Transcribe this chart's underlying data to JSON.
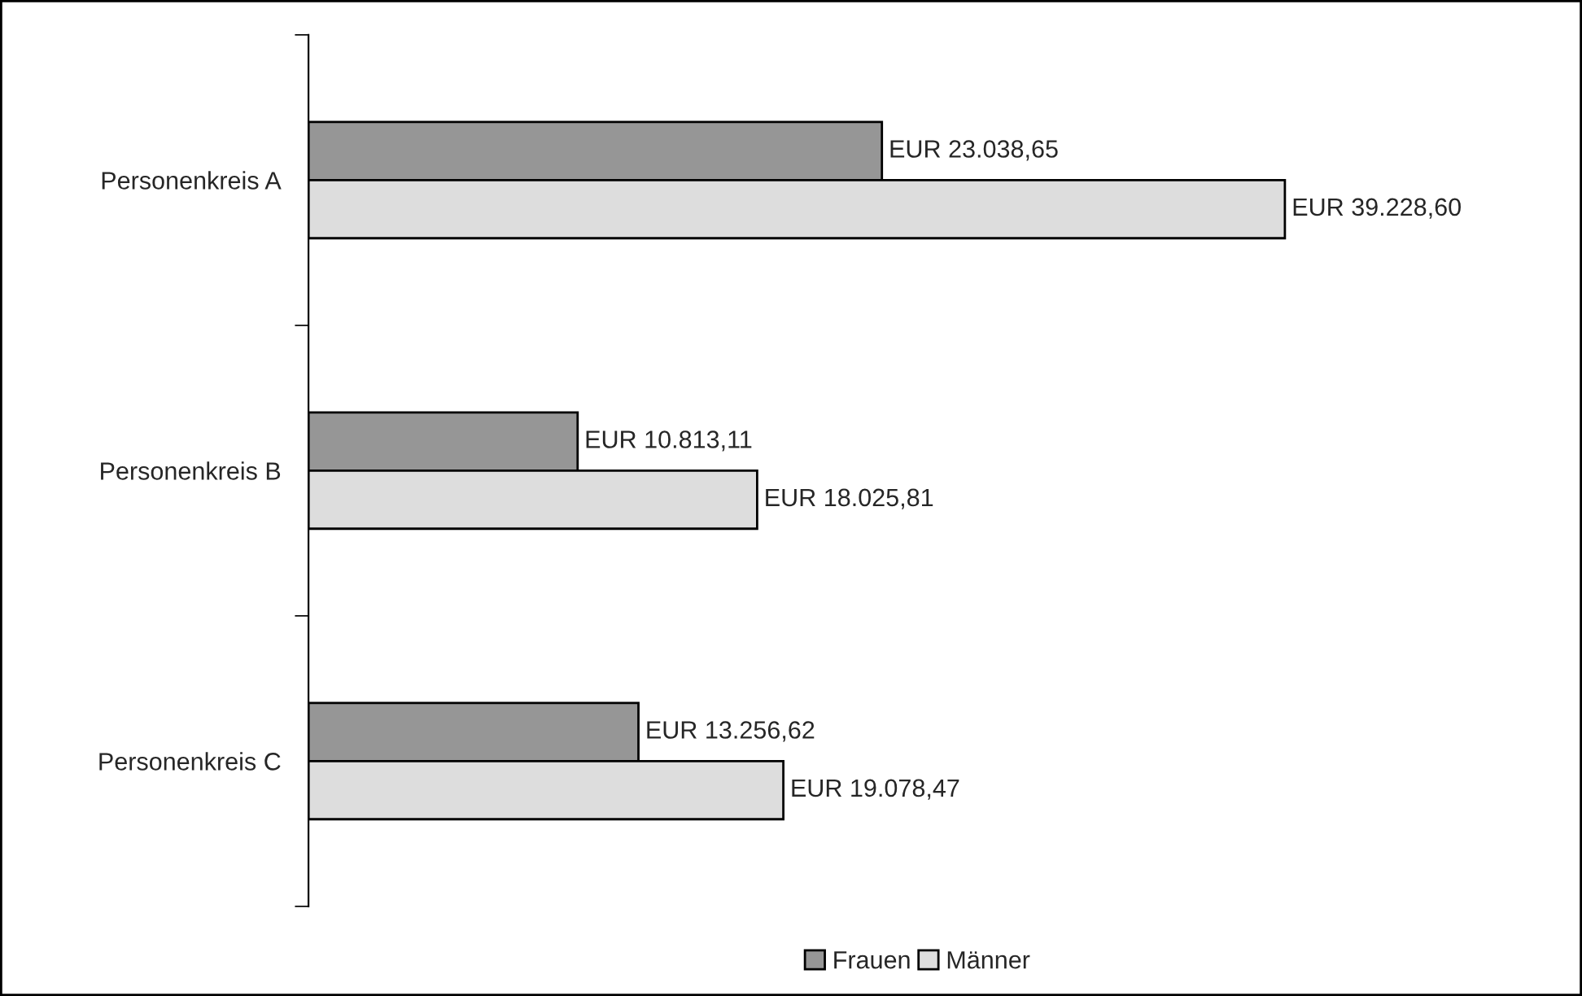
{
  "chart_data": {
    "type": "bar",
    "orientation": "horizontal",
    "categories": [
      "Personenkreis A",
      "Personenkreis B",
      "Personenkreis C"
    ],
    "series": [
      {
        "name": "Frauen",
        "color": "#969696",
        "values": [
          23038.65,
          10813.11,
          13256.62
        ],
        "value_labels": [
          "EUR 23.038,65",
          "EUR 10.813,11",
          "EUR 13.256,62"
        ]
      },
      {
        "name": "Männer",
        "color": "#dddddd",
        "values": [
          39228.6,
          18025.81,
          19078.47
        ],
        "value_labels": [
          "EUR 39.228,60",
          "EUR 18.025,81",
          "EUR 19.078,47"
        ]
      }
    ],
    "legend": "bottom",
    "grid": false
  }
}
